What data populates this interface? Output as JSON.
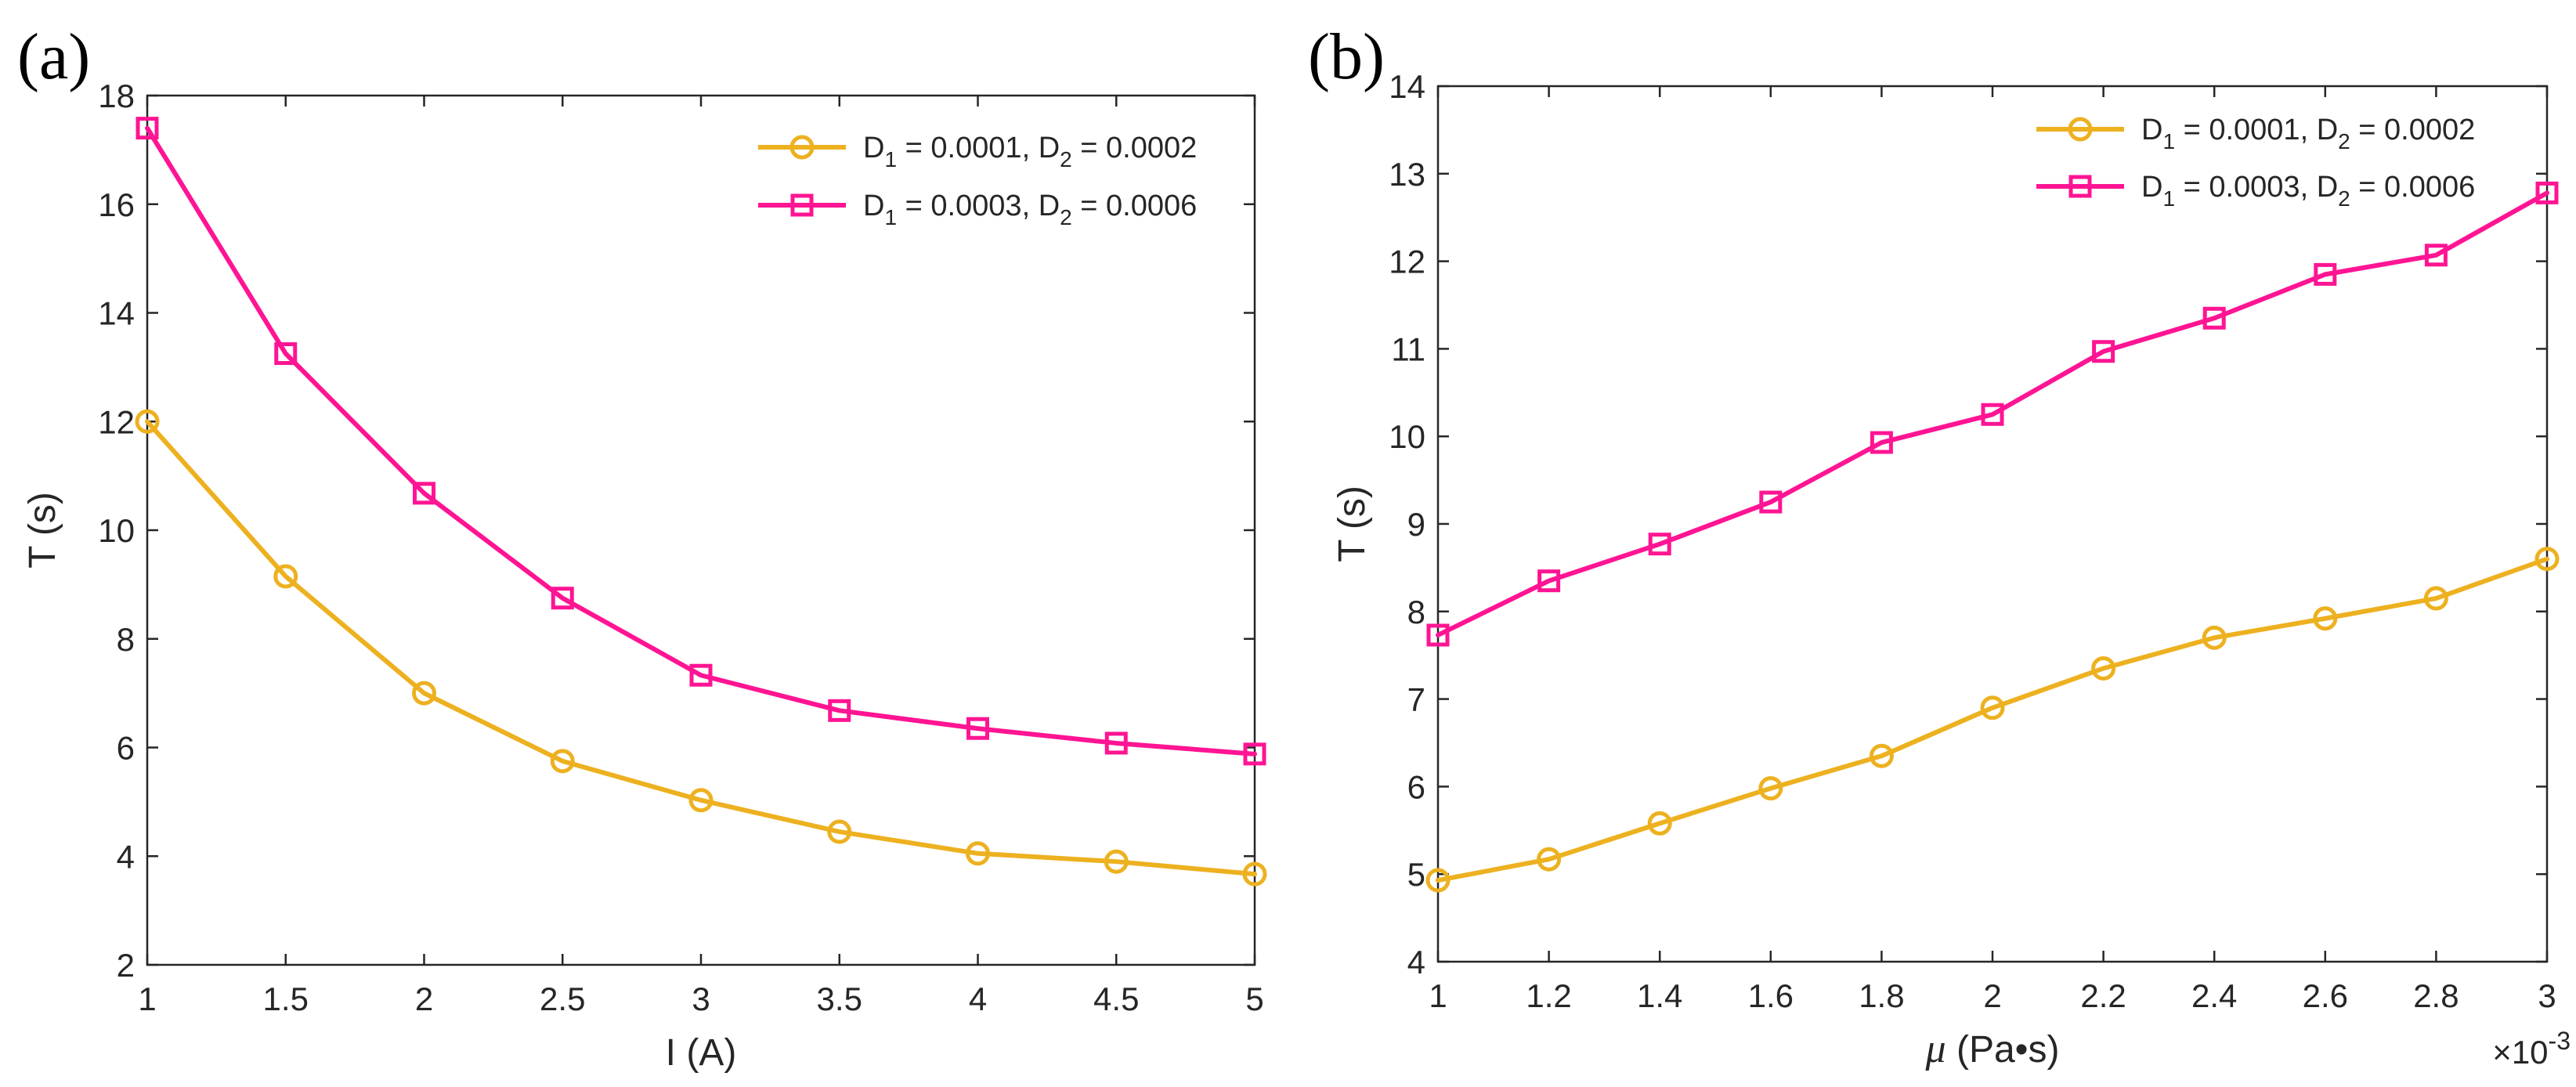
{
  "chart_data": [
    {
      "type": "line",
      "panel_label": "(a)",
      "xlabel": "I (A)",
      "ylabel": "T (s)",
      "xlim": [
        1,
        5
      ],
      "ylim": [
        2,
        18
      ],
      "x_ticks": [
        "1",
        "1.5",
        "2",
        "2.5",
        "3",
        "3.5",
        "4",
        "4.5",
        "5"
      ],
      "y_ticks": [
        "2",
        "4",
        "6",
        "8",
        "10",
        "12",
        "14",
        "16",
        "18"
      ],
      "x": [
        1,
        1.5,
        2,
        2.5,
        3,
        3.5,
        4,
        4.5,
        5
      ],
      "grid": false,
      "legend_position": "top-right",
      "series": [
        {
          "name": "D1 = 0.0001, D2 = 0.0002",
          "legend": {
            "d1_main": "D",
            "d1_sub": "1",
            "d1_val": " = 0.0001, ",
            "d2_main": "D",
            "d2_sub": "2",
            "d2_val": " = 0.0002"
          },
          "marker": "circle",
          "color": "#EDB120",
          "values": [
            12.0,
            9.15,
            7.0,
            5.75,
            5.03,
            4.45,
            4.05,
            3.9,
            3.67
          ]
        },
        {
          "name": "D1 = 0.0003, D2 = 0.0006",
          "legend": {
            "d1_main": "D",
            "d1_sub": "1",
            "d1_val": " = 0.0003, ",
            "d2_main": "D",
            "d2_sub": "2",
            "d2_val": " = 0.0006"
          },
          "marker": "square",
          "color": "#FF1493",
          "values": [
            17.4,
            13.25,
            10.68,
            8.75,
            7.33,
            6.68,
            6.35,
            6.08,
            5.88
          ]
        }
      ]
    },
    {
      "type": "line",
      "panel_label": "(b)",
      "xlabel_symbol": "μ",
      "xlabel_rest": " (Pa•s)",
      "ylabel": "T (s)",
      "xlim": [
        1,
        3
      ],
      "ylim": [
        4,
        14
      ],
      "x_ticks": [
        "1",
        "1.2",
        "1.4",
        "1.6",
        "1.8",
        "2",
        "2.2",
        "2.4",
        "2.6",
        "2.8",
        "3"
      ],
      "y_ticks": [
        "4",
        "5",
        "6",
        "7",
        "8",
        "9",
        "10",
        "11",
        "12",
        "13",
        "14"
      ],
      "x_exponent_base": "×10",
      "x_exponent_power": "-3",
      "x": [
        1,
        1.2,
        1.4,
        1.6,
        1.8,
        2,
        2.2,
        2.4,
        2.6,
        2.8,
        3
      ],
      "grid": false,
      "legend_position": "top-right",
      "series": [
        {
          "name": "D1 = 0.0001, D2 = 0.0002",
          "legend": {
            "d1_main": "D",
            "d1_sub": "1",
            "d1_val": " = 0.0001, ",
            "d2_main": "D",
            "d2_sub": "2",
            "d2_val": " = 0.0002"
          },
          "marker": "circle",
          "color": "#EDB120",
          "values": [
            4.93,
            5.17,
            5.58,
            5.98,
            6.35,
            6.9,
            7.35,
            7.7,
            7.92,
            8.15,
            8.6
          ]
        },
        {
          "name": "D1 = 0.0003, D2 = 0.0006",
          "legend": {
            "d1_main": "D",
            "d1_sub": "1",
            "d1_val": " = 0.0003, ",
            "d2_main": "D",
            "d2_sub": "2",
            "d2_val": " = 0.0006"
          },
          "marker": "square",
          "color": "#FF1493",
          "values": [
            7.73,
            8.35,
            8.77,
            9.25,
            9.93,
            10.25,
            10.97,
            11.35,
            11.85,
            12.07,
            12.78
          ]
        }
      ]
    }
  ]
}
